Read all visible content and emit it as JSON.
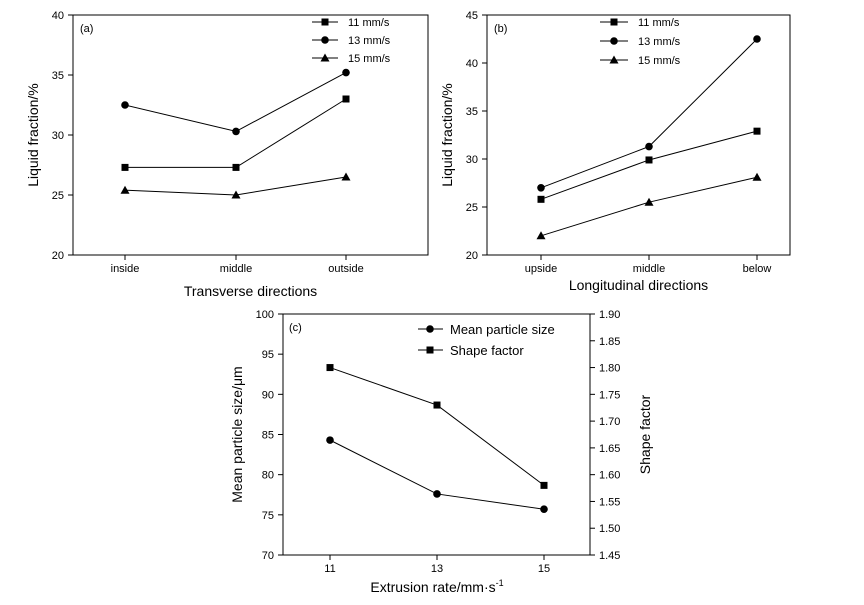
{
  "chart_data": [
    {
      "panel": "(a)",
      "type": "line",
      "categories": [
        "inside",
        "middle",
        "outside"
      ],
      "xlabel": "Transverse directions",
      "ylabel": "Liquid fraction/%",
      "ylim": [
        20,
        40
      ],
      "yticks": [
        "20",
        "25",
        "30",
        "35",
        "40"
      ],
      "legend_position": "top-right",
      "grid": false,
      "series": [
        {
          "name": "11 mm/s",
          "marker": "square",
          "values": [
            27.3,
            27.3,
            33.0
          ]
        },
        {
          "name": "13 mm/s",
          "marker": "circle",
          "values": [
            32.5,
            30.3,
            35.2
          ]
        },
        {
          "name": "15 mm/s",
          "marker": "triangle",
          "values": [
            25.4,
            25.0,
            26.5
          ]
        }
      ]
    },
    {
      "panel": "(b)",
      "type": "line",
      "categories": [
        "upside",
        "middle",
        "below"
      ],
      "xlabel": "Longitudinal directions",
      "ylabel": "Liquid fraction/%",
      "ylim": [
        20,
        45
      ],
      "yticks": [
        "20",
        "25",
        "30",
        "35",
        "40",
        "45"
      ],
      "legend_position": "top-left",
      "grid": false,
      "series": [
        {
          "name": "11 mm/s",
          "marker": "square",
          "values": [
            25.8,
            29.9,
            32.9
          ]
        },
        {
          "name": "13 mm/s",
          "marker": "circle",
          "values": [
            27.0,
            31.3,
            42.5
          ]
        },
        {
          "name": "15 mm/s",
          "marker": "triangle",
          "values": [
            22.0,
            25.5,
            28.1
          ]
        }
      ]
    },
    {
      "panel": "(c)",
      "type": "line",
      "x": [
        11,
        13,
        15
      ],
      "xticks": [
        "11",
        "13",
        "15"
      ],
      "xlabel_main": "Extrusion rate/mm·s",
      "xlabel_sup": "-1",
      "ylabel": "Mean particle size/μm",
      "ylim": [
        70,
        100
      ],
      "yticks": [
        "70",
        "75",
        "80",
        "85",
        "90",
        "95",
        "100"
      ],
      "y2label": "Shape factor",
      "y2lim": [
        1.45,
        1.9
      ],
      "y2ticks": [
        "1.45",
        "1.50",
        "1.55",
        "1.60",
        "1.65",
        "1.70",
        "1.75",
        "1.80",
        "1.85",
        "1.90"
      ],
      "legend_position": "top-right",
      "grid": false,
      "series": [
        {
          "name": "Mean particle size",
          "marker": "circle",
          "axis": "left",
          "values": [
            84.3,
            77.6,
            75.7
          ]
        },
        {
          "name": "Shape factor",
          "marker": "square",
          "axis": "right",
          "values": [
            1.8,
            1.73,
            1.58
          ]
        }
      ]
    }
  ]
}
